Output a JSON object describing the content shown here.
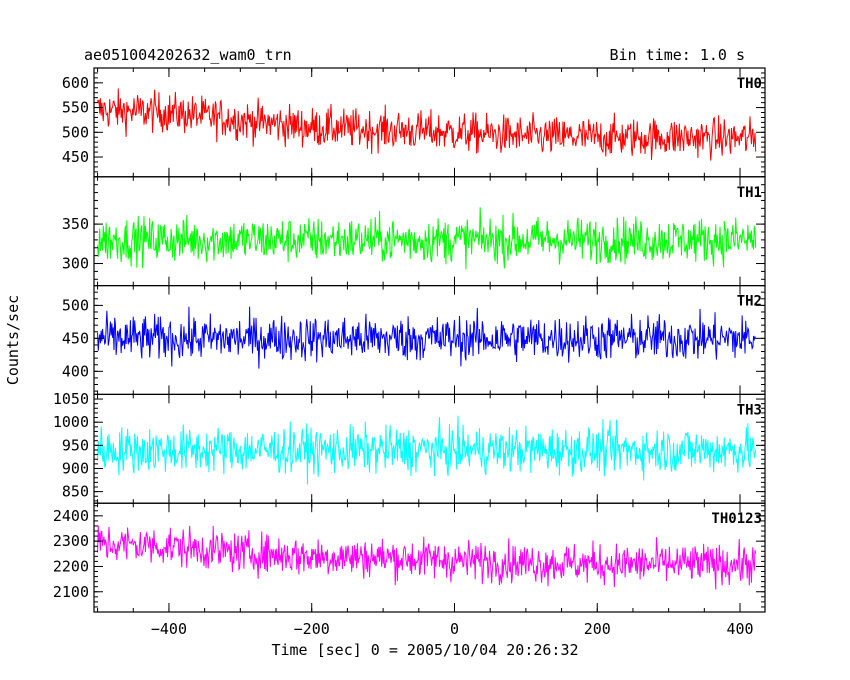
{
  "chart_data": {
    "type": "line",
    "title": "ae051004202632_wam0_trn",
    "subtitle": "Bin time: 1.0 s",
    "xlabel": "Time [sec] 0 = 2005/10/04 20:26:32",
    "ylabel": "Counts/sec",
    "xlim": [
      -505,
      435
    ],
    "x_ticks": [
      -400,
      -200,
      0,
      200,
      400
    ],
    "x_tick_labels": [
      "−400",
      "−200",
      "0",
      "200",
      "400"
    ],
    "data_x_range": [
      -500,
      422
    ],
    "grid": false,
    "panels": [
      {
        "name": "TH0",
        "color": "#ff0000",
        "ylim": [
          410,
          630
        ],
        "y_ticks": [
          450,
          500,
          550,
          600
        ],
        "y_tick_labels": [
          "450",
          "500",
          "550",
          "600"
        ],
        "trend_x": [
          -500,
          -400,
          -300,
          -200,
          -100,
          0,
          100,
          200,
          300,
          422
        ],
        "trend_y": [
          545,
          540,
          525,
          510,
          505,
          500,
          492,
          490,
          490,
          488
        ],
        "noise": 28
      },
      {
        "name": "TH1",
        "color": "#00ff00",
        "ylim": [
          272,
          410
        ],
        "y_ticks": [
          300,
          350
        ],
        "y_tick_labels": [
          "300",
          "350"
        ],
        "trend_x": [
          -500,
          422
        ],
        "trend_y": [
          330,
          330
        ],
        "noise": 20
      },
      {
        "name": "TH2",
        "color": "#0000ff",
        "ylim": [
          365,
          530
        ],
        "y_ticks": [
          400,
          450,
          500
        ],
        "y_tick_labels": [
          "400",
          "450",
          "500"
        ],
        "trend_x": [
          -500,
          422
        ],
        "trend_y": [
          450,
          450
        ],
        "noise": 24
      },
      {
        "name": "TH3",
        "color": "#00ffff",
        "ylim": [
          825,
          1060
        ],
        "y_ticks": [
          850,
          900,
          950,
          1000,
          1050
        ],
        "y_tick_labels": [
          "850",
          "900",
          "950",
          "1000",
          "1050"
        ],
        "trend_x": [
          -500,
          422
        ],
        "trend_y": [
          940,
          940
        ],
        "noise": 35
      },
      {
        "name": "TH0123",
        "color": "#ff00ff",
        "ylim": [
          2020,
          2450
        ],
        "y_ticks": [
          2100,
          2200,
          2300,
          2400
        ],
        "y_tick_labels": [
          "2100",
          "2200",
          "2300",
          "2400"
        ],
        "trend_x": [
          -500,
          -400,
          -300,
          -200,
          -100,
          0,
          100,
          200,
          300,
          422
        ],
        "trend_y": [
          2290,
          2280,
          2255,
          2240,
          2235,
          2225,
          2215,
          2210,
          2210,
          2210
        ],
        "noise": 55
      }
    ]
  }
}
